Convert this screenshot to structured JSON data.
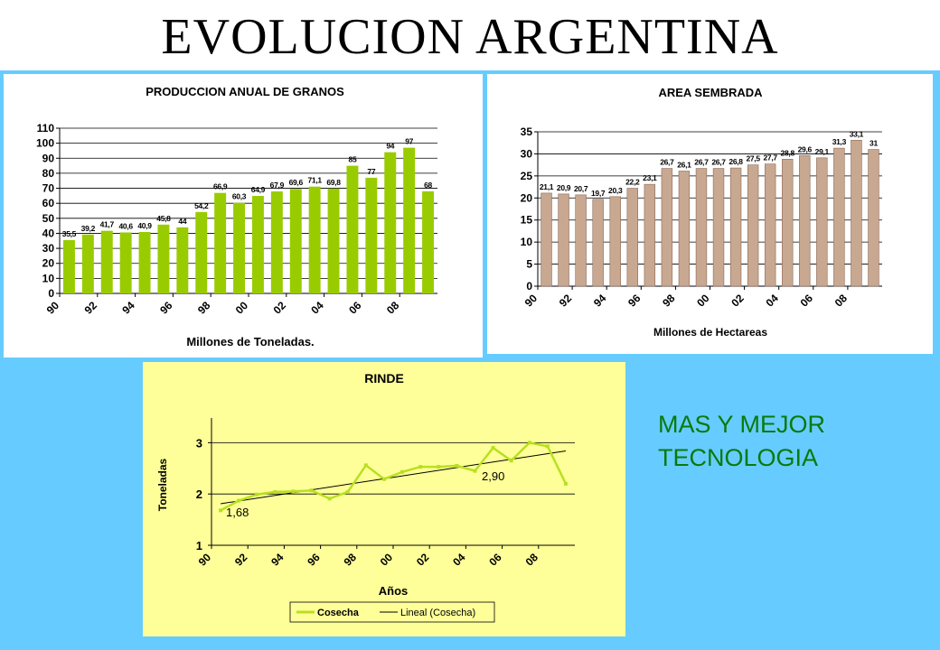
{
  "page": {
    "title": "EVOLUCION  ARGENTINA",
    "tagline_line1": "MAS Y MEJOR",
    "tagline_line2": "TECNOLOGIA",
    "colors": {
      "background": "#66ccff",
      "production_bar": "#99cc00",
      "area_bar": "#c8a890",
      "yield_line": "#b8e020",
      "tagline": "#0a7a0a"
    }
  },
  "chart_data": [
    {
      "type": "bar",
      "title": "PRODUCCION ANUAL DE GRANOS",
      "xlabel": "Millones de Toneladas.",
      "ylabel": "",
      "ylim": [
        0,
        110
      ],
      "yticks": [
        0,
        10,
        20,
        30,
        40,
        50,
        60,
        70,
        80,
        90,
        100,
        110
      ],
      "xticklabels": [
        "90",
        "92",
        "94",
        "96",
        "98",
        "00",
        "02",
        "04",
        "06",
        "08"
      ],
      "grid": true,
      "series": [
        {
          "name": "",
          "values": [
            35.5,
            39.2,
            41.7,
            40.6,
            40.9,
            45.8,
            44,
            54.2,
            66.9,
            60.3,
            64.9,
            67.9,
            69.6,
            71.1,
            69.8,
            85,
            77,
            94,
            97,
            68
          ],
          "labels": [
            "35,5",
            "39,2",
            "41,7",
            "40,6",
            "40,9",
            "45,8",
            "44",
            "54,2",
            "66,9",
            "60,3",
            "64,9",
            "67,9",
            "69,6",
            "71,1",
            "69,8",
            "85",
            "77",
            "94",
            "97",
            "68"
          ]
        }
      ]
    },
    {
      "type": "bar",
      "title": "AREA SEMBRADA",
      "xlabel": "Millones de Hectareas",
      "ylabel": "",
      "ylim": [
        0,
        35
      ],
      "yticks": [
        0,
        5,
        10,
        15,
        20,
        25,
        30,
        35
      ],
      "xticklabels": [
        "90",
        "92",
        "94",
        "96",
        "98",
        "00",
        "02",
        "04",
        "06",
        "08"
      ],
      "grid": true,
      "series": [
        {
          "name": "",
          "values": [
            21.1,
            20.9,
            20.7,
            19.7,
            20.3,
            22.2,
            23.1,
            26.7,
            26.1,
            26.7,
            26.7,
            26.8,
            27.5,
            27.7,
            28.8,
            29.6,
            29.1,
            31.3,
            33.1,
            31
          ],
          "labels": [
            "21,1",
            "20,9",
            "20,7",
            "19,7",
            "20,3",
            "22,2",
            "23,1",
            "26,7",
            "26,1",
            "26,7",
            "26,7",
            "26,8",
            "27,5",
            "27,7",
            "28,8",
            "29,6",
            "29,1",
            "31,3",
            "33,1",
            "31"
          ]
        }
      ]
    },
    {
      "type": "line",
      "title": "RINDE",
      "xlabel": "Años",
      "ylabel": "Toneladas",
      "ylim": [
        1,
        3.2
      ],
      "yticks": [
        1,
        2,
        3
      ],
      "xticklabels": [
        "90",
        "92",
        "94",
        "96",
        "98",
        "00",
        "02",
        "04",
        "06",
        "08"
      ],
      "grid": true,
      "legend": "bottom",
      "annotations": [
        "1,68",
        "2,90"
      ],
      "series": [
        {
          "name": "Cosecha",
          "values": [
            1.68,
            1.87,
            1.99,
            2.04,
            2.05,
            2.07,
            1.91,
            2.04,
            2.56,
            2.29,
            2.43,
            2.53,
            2.53,
            2.55,
            2.45,
            2.9,
            2.65,
            3.0,
            2.93,
            2.2
          ]
        },
        {
          "name": "Lineal (Cosecha)",
          "trend": [
            1.81,
            2.84
          ]
        }
      ]
    }
  ]
}
